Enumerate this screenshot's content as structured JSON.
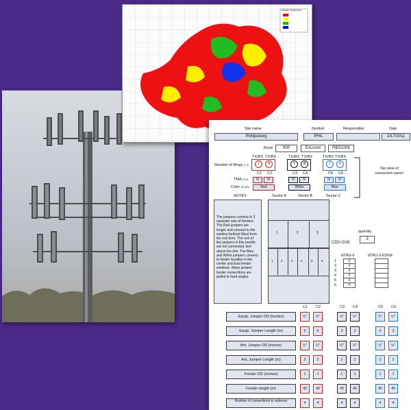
{
  "map": {
    "legend_title": "Median Subscriber",
    "legend_items": [
      {
        "color": "#ff0000",
        "label": ""
      },
      {
        "color": "#ffff00",
        "label": ""
      },
      {
        "color": "#00c000",
        "label": ""
      },
      {
        "color": "#0000ff",
        "label": ""
      }
    ]
  },
  "form": {
    "site_name_label": "Site name",
    "site_name": "Phillipsburg",
    "symbol_label": "Symbol",
    "symbol": "PHIL",
    "responsible_label": "Responsible",
    "responsible": "",
    "date_label": "Date",
    "date": "2/17/2011",
    "band_label": "Band",
    "band": "900",
    "vendor": "Ericsson",
    "model": "RBS2206",
    "txrx_headers": [
      "TX/RX",
      "TX/RX",
      "TX/RX",
      "TX/RX",
      "TX/RX",
      "TX/RX"
    ],
    "rings_label": "Number of Rings",
    "rings_note": "(I, II)",
    "rings": [
      "I",
      "II",
      "I",
      "II",
      "I",
      "II"
    ],
    "columns": [
      "C1",
      "C2",
      "C3",
      "C4",
      "C5",
      "C6"
    ],
    "tma_label": "TMA",
    "tma_note": "(Y/N)",
    "tma": [
      "N",
      "N",
      "N",
      "N",
      "N",
      "N"
    ],
    "color_label": "Color",
    "color_note": "(R,W,B)",
    "colors": [
      "Red",
      "White",
      "Blue"
    ],
    "top_view_label": "Top view of connection panel",
    "notes_label": "NOTES",
    "sectors": [
      "Sector A",
      "Sector B",
      "Sector C"
    ],
    "notes_text": "The jumpers connect to 3 separate sets of feeders. The Red jumpers are longer and connect to the window furthest West from the exit door. The rest of the jumpers in this bundle are not connected, tied above the tele. The Blue and White jumpers connect to feeder bundles in the center and East feeder windows. Many jumper/ feeder connections are pulled to hard angles.",
    "panel_top": [
      "1",
      "2",
      "3"
    ],
    "panel_bottom": [
      "1",
      "2",
      "3",
      "4",
      "5",
      "6"
    ],
    "cdu_label": "CDU-G18",
    "quantity_label": "quantity",
    "quantity": "3",
    "dtru_label": "dTRU-9",
    "dtru_edge_label": "dTRU-9 EDGE",
    "dtru_rows": [
      "1",
      "2",
      "3",
      "4",
      "5",
      "6"
    ],
    "dtru_marks": [
      "X",
      "X",
      "X",
      "X",
      "X",
      "X"
    ],
    "table_rows": [
      {
        "label": "Equip. Jumper OD (inches)",
        "values": [
          "½\"",
          "½\"",
          "½\"",
          "½\"",
          "½\"",
          "½\""
        ]
      },
      {
        "label": "Equip. Jumper Length (m)",
        "values": [
          "6",
          "6",
          "3",
          "3",
          "3",
          "3"
        ]
      },
      {
        "label": "Ant. Jumper OD (inches)",
        "values": [
          "½\"",
          "½\"",
          "½\"",
          "½\"",
          "½\"",
          "½\""
        ]
      },
      {
        "label": "Ant. Jumper Length (m)",
        "values": [
          "2",
          "2",
          "2",
          "2",
          "2",
          "2"
        ]
      },
      {
        "label": "Feeder OD (inches)",
        "values": [
          "1",
          "1",
          "1",
          "1",
          "1",
          "1"
        ]
      },
      {
        "label": "Feeder length (m)",
        "values": [
          "40",
          "40",
          "40",
          "40",
          "40",
          "40"
        ]
      },
      {
        "label": "Number of connections to antenna",
        "values": [
          "4",
          "4",
          "4",
          "4",
          "4",
          "4"
        ]
      }
    ]
  },
  "colors": {
    "background": "#4b2a88",
    "red": "#d02020",
    "blue": "#1e74d0",
    "field": "#dde3f0"
  }
}
